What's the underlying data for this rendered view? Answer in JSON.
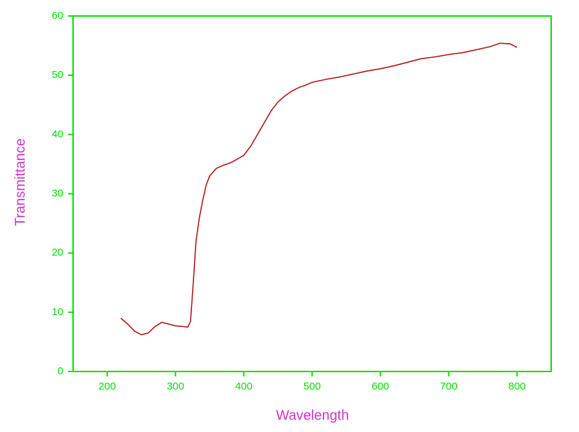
{
  "chart_data": {
    "type": "line",
    "x_label": "Wavelength",
    "y_label": "Transmittance",
    "xlim": [
      150,
      850
    ],
    "xticks": [
      200,
      300,
      400,
      500,
      600,
      700,
      800
    ],
    "ylim": [
      0,
      60
    ],
    "yticks": [
      0,
      10,
      20,
      30,
      40,
      50,
      60
    ],
    "axis_color": "#00e000",
    "label_color": "#cc33cc",
    "series": [
      {
        "color": "#b01515",
        "x": [
          220,
          230,
          240,
          250,
          260,
          270,
          280,
          290,
          300,
          310,
          318,
          322,
          326,
          330,
          335,
          340,
          345,
          350,
          360,
          370,
          380,
          390,
          400,
          410,
          420,
          430,
          440,
          450,
          460,
          470,
          480,
          490,
          500,
          520,
          540,
          560,
          580,
          600,
          620,
          640,
          660,
          680,
          700,
          720,
          740,
          760,
          775,
          790,
          800
        ],
        "values": [
          9.0,
          8.0,
          6.8,
          6.2,
          6.5,
          7.6,
          8.3,
          8.0,
          7.7,
          7.6,
          7.5,
          8.5,
          15,
          22,
          26,
          29,
          31.5,
          33,
          34.3,
          34.8,
          35.2,
          35.8,
          36.5,
          38,
          40,
          42,
          44,
          45.5,
          46.5,
          47.3,
          47.9,
          48.3,
          48.8,
          49.3,
          49.7,
          50.2,
          50.7,
          51.1,
          51.6,
          52.2,
          52.8,
          53.1,
          53.5,
          53.8,
          54.3,
          54.8,
          55.4,
          55.3,
          54.7
        ]
      }
    ]
  }
}
